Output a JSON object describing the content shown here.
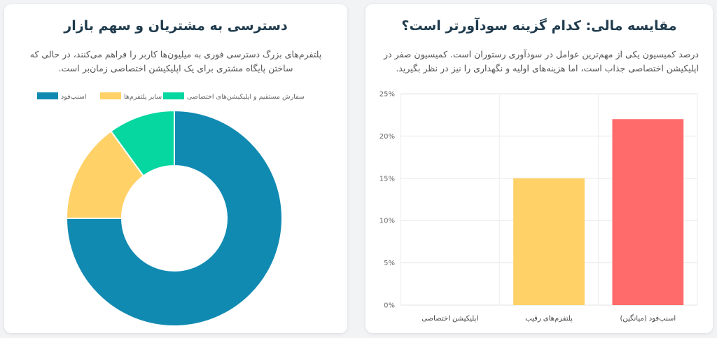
{
  "bar_card": {
    "title": "مقایسه مالی: کدام گزینه سودآورتر است؟",
    "description": "درصد کمیسیون یکی از مهم‌ترین عوامل در سودآوری رستوران است. کمیسیون صفر در اپلیکیشن اختصاصی جذاب است، اما هزینه‌های اولیه و نگهداری را نیز در نظر بگیرید."
  },
  "donut_card": {
    "title": "دسترسی به مشتریان و سهم بازار",
    "description": "پلتفرم‌های بزرگ دسترسی فوری به میلیون‌ها کاربر را فراهم می‌کنند، در حالی که ساختن پایگاه مشتری برای یک اپلیکیشن اختصاصی زمان‌بر است."
  },
  "chart_data": [
    {
      "type": "bar",
      "categories": [
        "اسنپ‌فود (میانگین)",
        "پلتفرم‌های رقیب",
        "اپلیکیشن اختصاصی"
      ],
      "values": [
        22,
        15,
        0
      ],
      "colors": [
        "#ff6b6b",
        "#ffd166",
        "#06d6a0"
      ],
      "ylim": [
        0,
        25
      ],
      "yticks": [
        0,
        5,
        10,
        15,
        20,
        25
      ],
      "ytick_labels": [
        "0%",
        "5%",
        "10%",
        "15%",
        "20%",
        "25%"
      ],
      "grid": true
    },
    {
      "type": "pie",
      "hole": true,
      "labels": [
        "اسنپ‌فود",
        "سایر پلتفرم‌ها",
        "سفارش مستقیم و اپلیکیشن‌های اختصاصی"
      ],
      "legend_labels": [
        "اسنپ‌فود",
        "سایر پلتفرم‌ها",
        "سفارش مستقیم و اپلیکیشن‌های اختصاصی"
      ],
      "values": [
        75,
        15,
        10
      ],
      "colors": [
        "#118ab2",
        "#ffd166",
        "#06d6a0"
      ],
      "legend_position": "top"
    }
  ]
}
